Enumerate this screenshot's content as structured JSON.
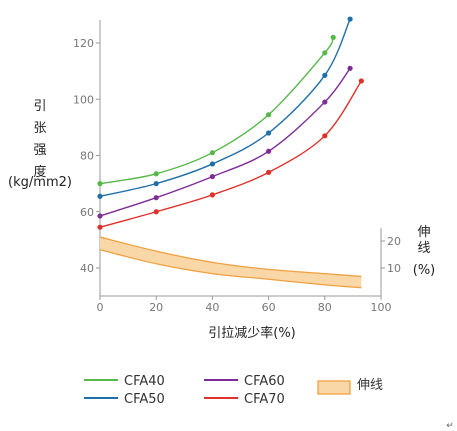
{
  "chart_data": {
    "type": "line",
    "x_axis": {
      "label": "引拉减少率(%)",
      "range": [
        0,
        100
      ],
      "ticks": [
        0,
        20,
        40,
        60,
        80,
        100
      ]
    },
    "y_axis_left": {
      "label": [
        "引",
        "张",
        "强",
        "度",
        "(kg/mm2)"
      ],
      "range": [
        30,
        130
      ],
      "ticks": [
        40,
        60,
        80,
        100,
        120
      ]
    },
    "y_axis_right": {
      "label": [
        "伸",
        "线",
        "(%)"
      ],
      "ticks": [
        10,
        20
      ]
    },
    "series": [
      {
        "name": "CFA40",
        "color": "#55b848",
        "points": [
          [
            0,
            70
          ],
          [
            20,
            73.5
          ],
          [
            40,
            81
          ],
          [
            60,
            94.5
          ],
          [
            80,
            116.5
          ],
          [
            83,
            122
          ]
        ]
      },
      {
        "name": "CFA50",
        "color": "#1f6fa8",
        "points": [
          [
            0,
            65.5
          ],
          [
            20,
            70
          ],
          [
            40,
            77
          ],
          [
            60,
            88
          ],
          [
            80,
            108.5
          ],
          [
            89,
            128.5
          ]
        ]
      },
      {
        "name": "CFA60",
        "color": "#7d2d96",
        "points": [
          [
            0,
            58.5
          ],
          [
            20,
            65
          ],
          [
            40,
            72.5
          ],
          [
            60,
            81.5
          ],
          [
            80,
            99
          ],
          [
            89,
            111
          ]
        ]
      },
      {
        "name": "CFA70",
        "color": "#e0302a",
        "points": [
          [
            0,
            54.5
          ],
          [
            20,
            60
          ],
          [
            40,
            66
          ],
          [
            60,
            74
          ],
          [
            80,
            87
          ],
          [
            93,
            106.5
          ]
        ]
      }
    ],
    "band": {
      "name": "伸线",
      "edge_color": "#f0a040",
      "fill_color": "#f9d7a6",
      "upper": [
        [
          0,
          51
        ],
        [
          20,
          46
        ],
        [
          40,
          42
        ],
        [
          60,
          39.5
        ],
        [
          80,
          38
        ],
        [
          93,
          37
        ]
      ],
      "lower": [
        [
          0,
          46.5
        ],
        [
          20,
          41.5
        ],
        [
          40,
          38
        ],
        [
          60,
          36
        ],
        [
          80,
          34
        ],
        [
          93,
          33
        ]
      ]
    },
    "legend_position": "bottom",
    "footer_mark": "↵"
  }
}
